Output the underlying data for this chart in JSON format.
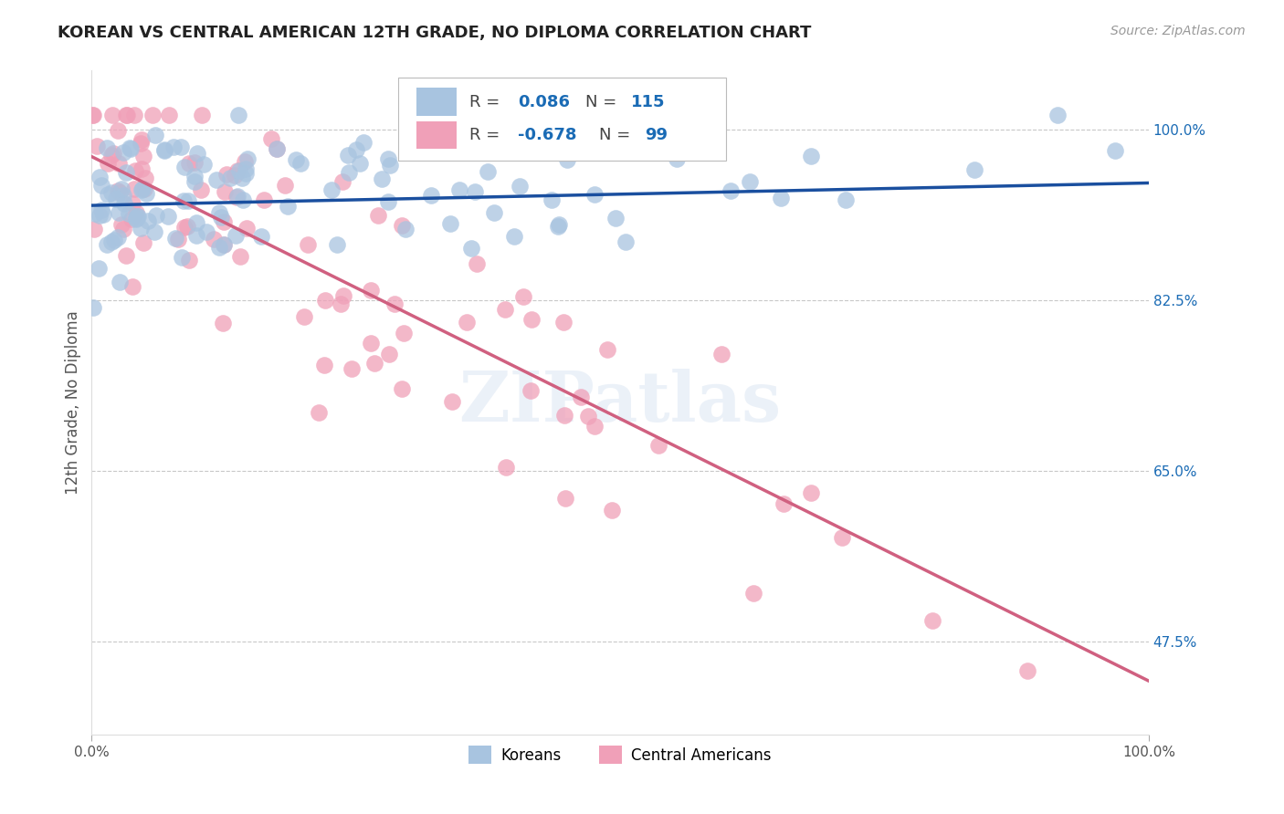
{
  "title": "KOREAN VS CENTRAL AMERICAN 12TH GRADE, NO DIPLOMA CORRELATION CHART",
  "source": "Source: ZipAtlas.com",
  "ylabel": "12th Grade, No Diploma",
  "ytick_values": [
    0.475,
    0.65,
    0.825,
    1.0
  ],
  "xmin": 0.0,
  "xmax": 1.0,
  "ymin": 0.38,
  "ymax": 1.06,
  "korean_R": 0.086,
  "korean_N": 115,
  "central_R": -0.678,
  "central_N": 99,
  "korean_color": "#a8c4e0",
  "central_color": "#f0a0b8",
  "korean_line_color": "#1a4f9f",
  "central_line_color": "#d06080",
  "korean_line_y0": 0.922,
  "korean_line_y1": 0.945,
  "central_line_y0": 0.972,
  "central_line_y1": 0.435,
  "legend_label_korean": "Koreans",
  "legend_label_central": "Central Americans",
  "watermark": "ZIPatlas",
  "background_color": "#ffffff",
  "grid_color": "#c8c8c8",
  "title_color": "#222222",
  "axis_label_color": "#555555",
  "r_n_color": "#1a6bb5",
  "label_color": "#444444"
}
